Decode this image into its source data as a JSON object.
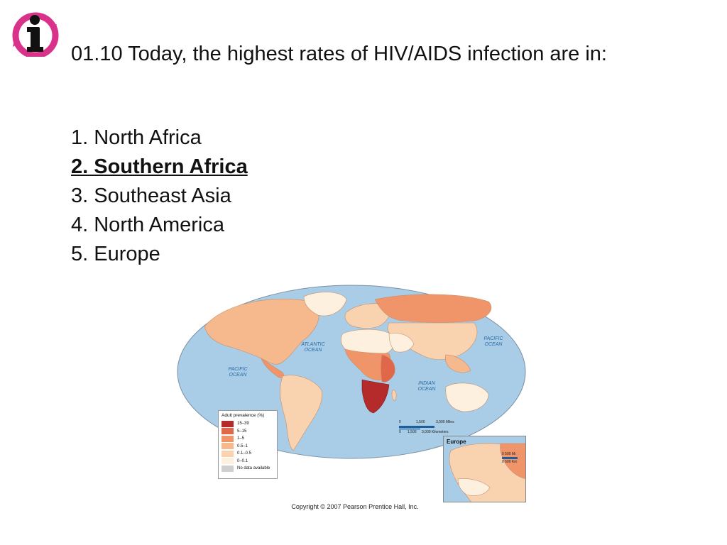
{
  "question": {
    "text": "01.10 Today, the highest rates of HIV/AIDS infection are in:"
  },
  "answers": [
    {
      "label": "1. North Africa",
      "correct": false
    },
    {
      "label": "2. Southern Africa",
      "correct": true
    },
    {
      "label": "3. Southeast Asia",
      "correct": false
    },
    {
      "label": "4. North America",
      "correct": false
    },
    {
      "label": "5. Europe",
      "correct": false
    }
  ],
  "map": {
    "oceans": {
      "atlantic": "ATLANTIC OCEAN",
      "pacific_west": "PACIFIC OCEAN",
      "pacific_east": "PACIFIC OCEAN",
      "indian": "INDIAN OCEAN"
    },
    "legend": {
      "title": "Adult prevalence (%)",
      "items": [
        {
          "label": "15–39",
          "color": "#b52a2a"
        },
        {
          "label": "5–15",
          "color": "#e0674a"
        },
        {
          "label": "1–5",
          "color": "#f0946a"
        },
        {
          "label": "0.5–1",
          "color": "#f6b98d"
        },
        {
          "label": "0.1–0.5",
          "color": "#f9d2b0"
        },
        {
          "label": "0–0.1",
          "color": "#fdf0df"
        },
        {
          "label": "No data available",
          "color": "#cfcfcf"
        }
      ]
    },
    "scale": {
      "miles": "3,000 Miles",
      "miles_mid": "1,500",
      "km": "3,000 Kilometers",
      "km_mid": "1,500",
      "zero": "0"
    },
    "inset": {
      "title": "Europe",
      "scale_mi": "500 Mi",
      "scale_km": "500 Km",
      "zero": "0"
    },
    "colors": {
      "ocean": "#a9cde6",
      "ocean_border": "#7a8fa3"
    }
  },
  "copyright": "Copyright © 2007 Pearson Prentice Hall, Inc."
}
